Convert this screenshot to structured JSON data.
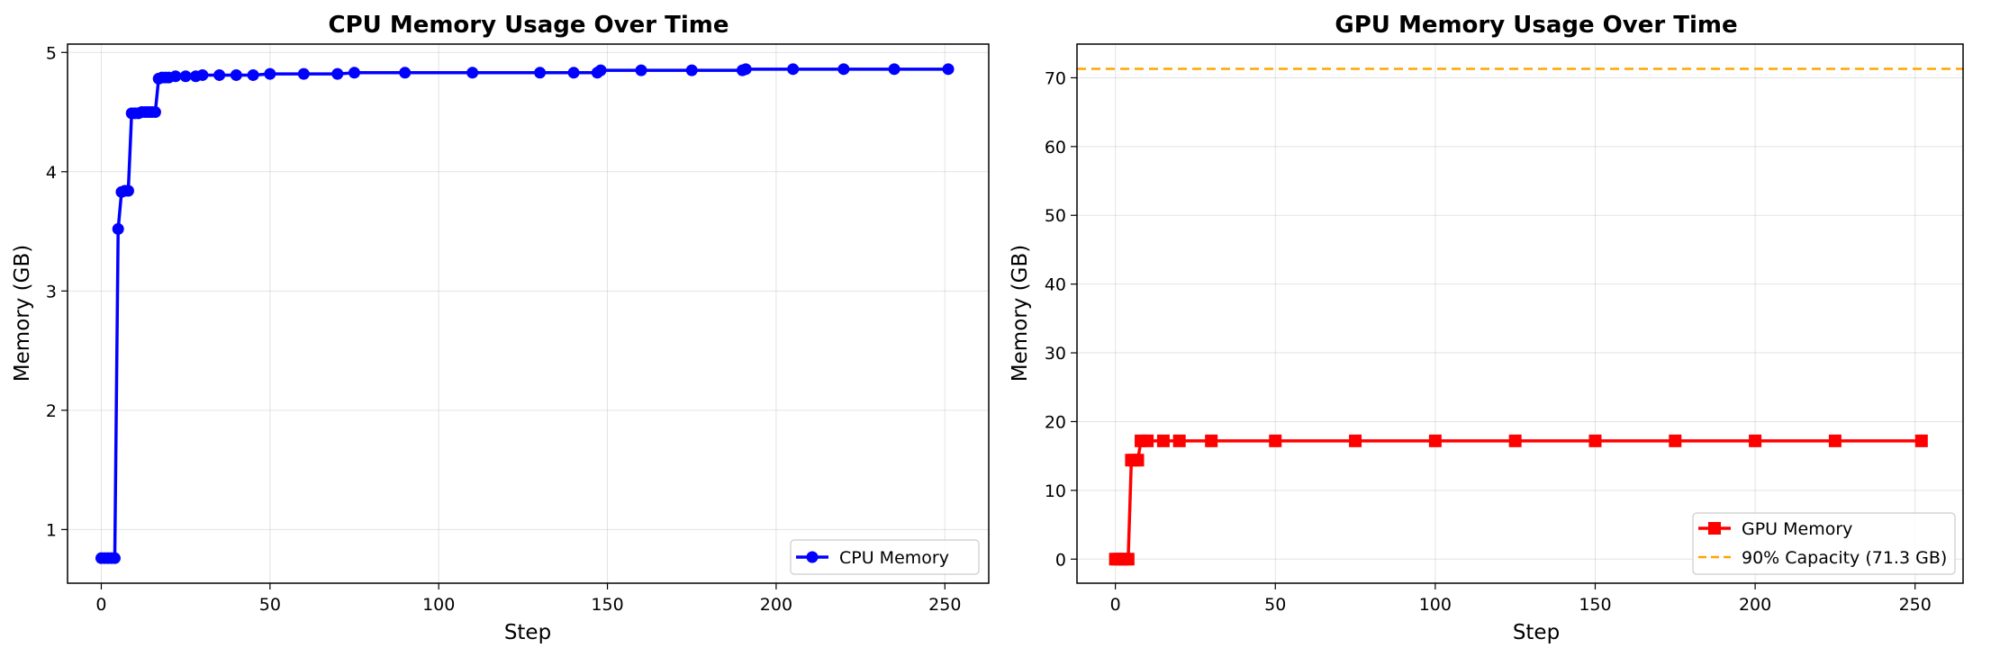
{
  "chart_data": [
    {
      "type": "line",
      "title": "CPU Memory Usage Over Time",
      "xlabel": "Step",
      "ylabel": "Memory (GB)",
      "xlim": [
        -10,
        263
      ],
      "ylim": [
        0.55,
        5.07
      ],
      "xticks": [
        0,
        50,
        100,
        150,
        200,
        250
      ],
      "yticks": [
        1,
        2,
        3,
        4,
        5
      ],
      "grid": true,
      "legend_position": "lower-right",
      "series": [
        {
          "name": "CPU Memory",
          "color": "#0000ff",
          "marker": "circle",
          "points": [
            [
              0,
              0.76
            ],
            [
              1,
              0.76
            ],
            [
              2,
              0.76
            ],
            [
              3,
              0.76
            ],
            [
              4,
              0.76
            ],
            [
              5,
              3.52
            ],
            [
              6,
              3.83
            ],
            [
              7,
              3.84
            ],
            [
              8,
              3.84
            ],
            [
              9,
              4.49
            ],
            [
              10,
              4.49
            ],
            [
              11,
              4.49
            ],
            [
              12,
              4.5
            ],
            [
              13,
              4.5
            ],
            [
              14,
              4.5
            ],
            [
              15,
              4.5
            ],
            [
              16,
              4.5
            ],
            [
              17,
              4.78
            ],
            [
              18,
              4.79
            ],
            [
              19,
              4.79
            ],
            [
              20,
              4.79
            ],
            [
              22,
              4.8
            ],
            [
              25,
              4.8
            ],
            [
              28,
              4.8
            ],
            [
              30,
              4.81
            ],
            [
              35,
              4.81
            ],
            [
              40,
              4.81
            ],
            [
              45,
              4.81
            ],
            [
              50,
              4.82
            ],
            [
              60,
              4.82
            ],
            [
              70,
              4.82
            ],
            [
              75,
              4.83
            ],
            [
              90,
              4.83
            ],
            [
              110,
              4.83
            ],
            [
              130,
              4.83
            ],
            [
              140,
              4.83
            ],
            [
              147,
              4.83
            ],
            [
              148,
              4.85
            ],
            [
              160,
              4.85
            ],
            [
              175,
              4.85
            ],
            [
              190,
              4.85
            ],
            [
              191,
              4.86
            ],
            [
              205,
              4.86
            ],
            [
              220,
              4.86
            ],
            [
              235,
              4.86
            ],
            [
              251,
              4.86
            ]
          ]
        }
      ]
    },
    {
      "type": "line",
      "title": "GPU Memory Usage Over Time",
      "xlabel": "Step",
      "ylabel": "Memory (GB)",
      "xlim": [
        -12,
        265
      ],
      "ylim": [
        -3.5,
        74.9
      ],
      "xticks": [
        0,
        50,
        100,
        150,
        200,
        250
      ],
      "yticks": [
        0,
        10,
        20,
        30,
        40,
        50,
        60,
        70
      ],
      "grid": true,
      "legend_position": "lower-right",
      "series": [
        {
          "name": "GPU Memory",
          "color": "#ff0000",
          "marker": "square",
          "points": [
            [
              0,
              0
            ],
            [
              1,
              0
            ],
            [
              2,
              0
            ],
            [
              3,
              0
            ],
            [
              4,
              0
            ],
            [
              5,
              14.4
            ],
            [
              6,
              14.4
            ],
            [
              7,
              14.4
            ],
            [
              8,
              17.2
            ],
            [
              10,
              17.2
            ],
            [
              15,
              17.2
            ],
            [
              20,
              17.2
            ],
            [
              30,
              17.2
            ],
            [
              50,
              17.2
            ],
            [
              75,
              17.2
            ],
            [
              100,
              17.2
            ],
            [
              125,
              17.2
            ],
            [
              150,
              17.2
            ],
            [
              175,
              17.2
            ],
            [
              200,
              17.2
            ],
            [
              225,
              17.2
            ],
            [
              252,
              17.2
            ]
          ]
        },
        {
          "name": "90% Capacity (71.3 GB)",
          "color": "#ffa500",
          "style": "dashed",
          "hline": 71.3
        }
      ]
    }
  ]
}
